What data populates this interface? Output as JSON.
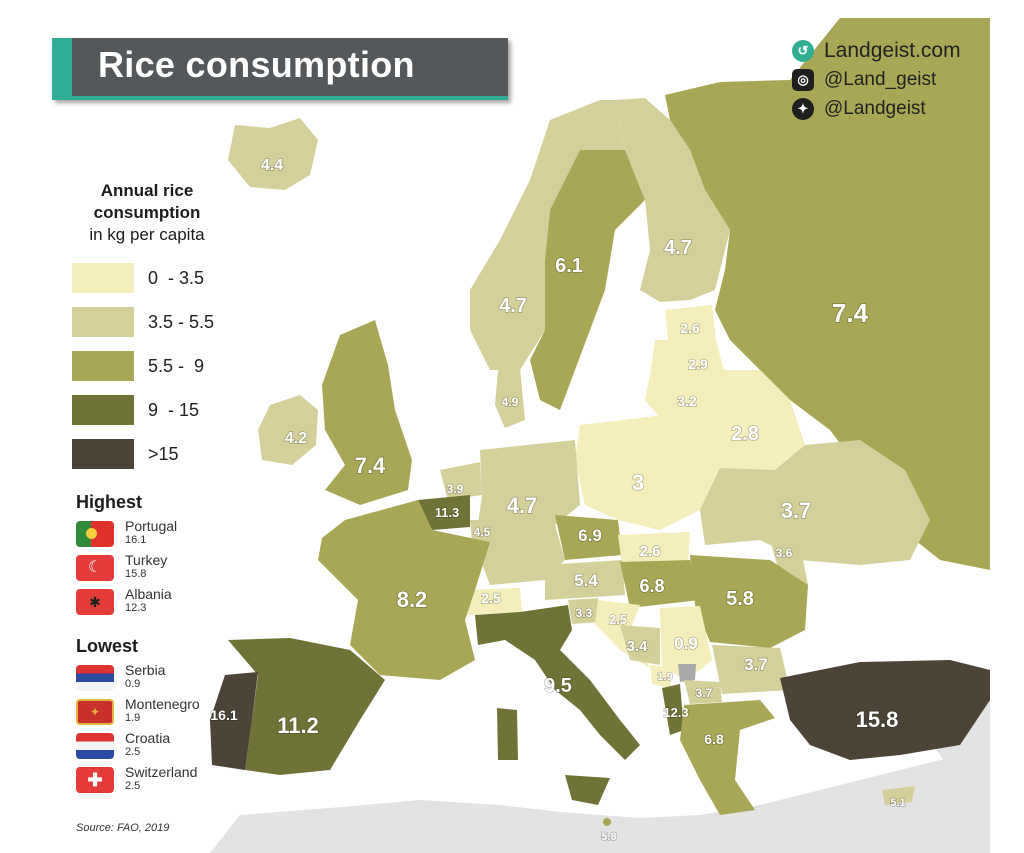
{
  "title": "Rice consumption",
  "brand": {
    "site": "Landgeist.com",
    "instagram": "@Land_geist",
    "twitter": "@Landgeist"
  },
  "legend": {
    "title_line1": "Annual rice",
    "title_line2": "consumption",
    "subtitle": "in kg per capita",
    "bins": [
      {
        "label": "0  - 3.5",
        "color": "#f3eebc"
      },
      {
        "label": "3.5 - 5.5",
        "color": "#d4d09b"
      },
      {
        "label": "5.5 -  9",
        "color": "#a8a756"
      },
      {
        "label": "9  - 15",
        "color": "#6f7338"
      },
      {
        "label": ">15",
        "color": "#4b4437"
      }
    ]
  },
  "highest": {
    "heading": "Highest",
    "items": [
      {
        "name": "Portugal",
        "value": "16.1"
      },
      {
        "name": "Turkey",
        "value": "15.8"
      },
      {
        "name": "Albania",
        "value": "12.3"
      }
    ]
  },
  "lowest": {
    "heading": "Lowest",
    "items": [
      {
        "name": "Serbia",
        "value": "0.9"
      },
      {
        "name": "Montenegro",
        "value": "1.9"
      },
      {
        "name": "Croatia",
        "value": "2.5"
      },
      {
        "name": "Switzerland",
        "value": "2.5"
      }
    ]
  },
  "source": "Source: FAO, 2019",
  "regions": {
    "iceland": "4.4",
    "ireland": "4.2",
    "uk": "7.4",
    "norway": "4.7",
    "sweden": "6.1",
    "finland": "4.7",
    "russia": "7.4",
    "estonia": "2.6",
    "latvia": "2.9",
    "lithuania": "3.2",
    "belarus": "2.8",
    "poland": "3",
    "ukraine": "3.7",
    "moldova": "3.6",
    "denmark": "4.9",
    "netherlands": "3.9",
    "belgium": "11.3",
    "luxembourg": "4.5",
    "germany": "4.7",
    "czechia": "6.9",
    "slovakia": "2.6",
    "austria": "5.4",
    "hungary": "6.8",
    "switzerland": "2.5",
    "slovenia": "3.3",
    "croatia": "2.5",
    "bosnia": "3.4",
    "serbia": "0.9",
    "montenegro": "1.9",
    "albania": "12.3",
    "north_macedonia": "3.7",
    "romania": "5.8",
    "bulgaria": "3.7",
    "greece": "6.8",
    "france": "8.2",
    "spain": "11.2",
    "portugal": "16.1",
    "italy": "9.5",
    "turkey": "15.8",
    "cyprus": "5.1",
    "malta": "5.8"
  }
}
